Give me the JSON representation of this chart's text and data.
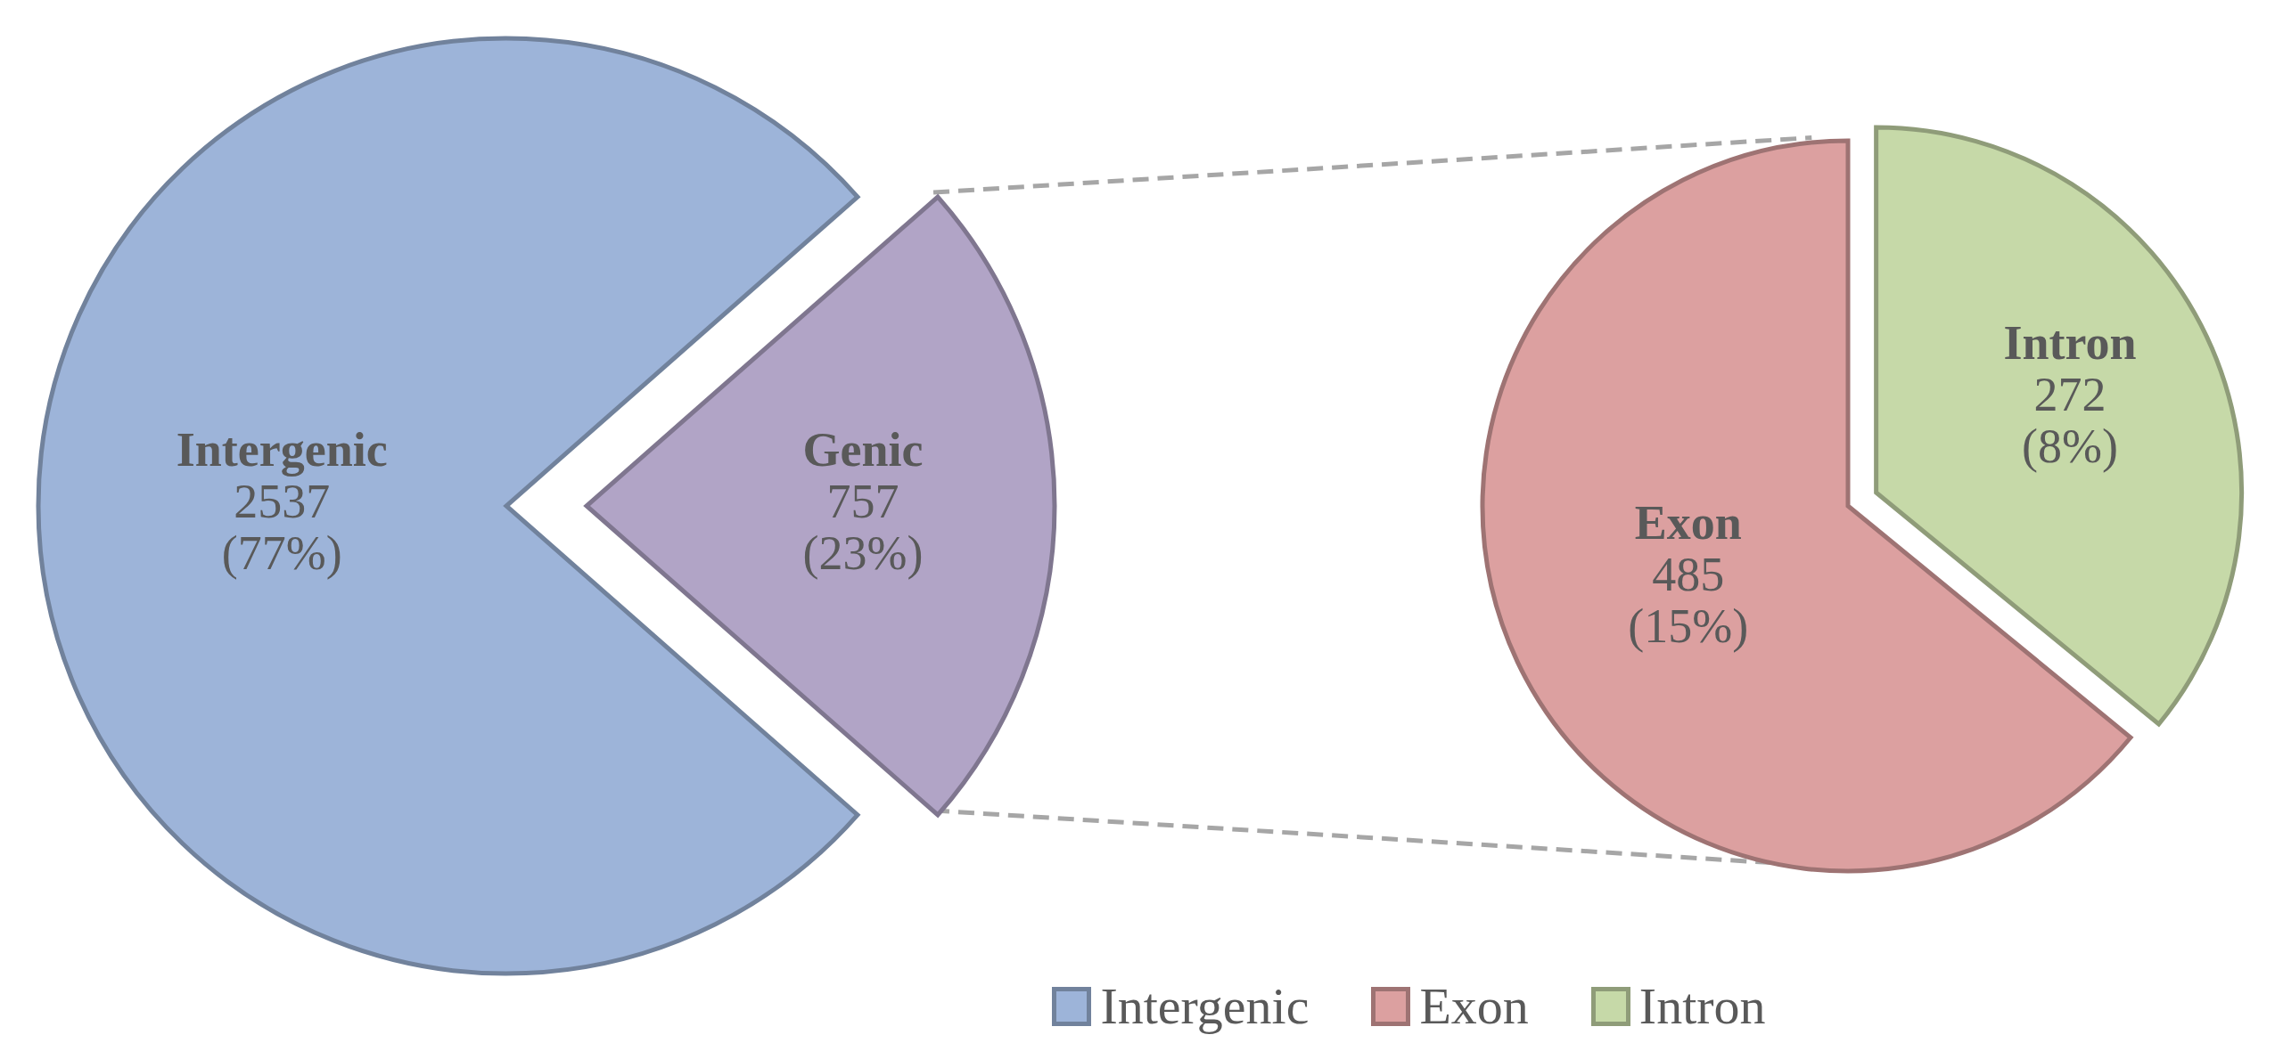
{
  "chart_data": [
    {
      "type": "pie",
      "categories": [
        "Intergenic",
        "Genic"
      ],
      "values": [
        2537,
        757
      ],
      "value_labels": [
        "2537 (77%)",
        "757 (23%)"
      ],
      "colors": [
        "#9db4d9",
        "#b1a4c6"
      ],
      "legend": "bottom"
    },
    {
      "type": "pie",
      "categories": [
        "Exon",
        "Intron"
      ],
      "values": [
        485,
        272
      ],
      "value_labels": [
        "485 (15%)",
        "272 (8%)"
      ],
      "colors": [
        "#dca0a0",
        "#c6d9a8"
      ],
      "legend": "bottom"
    }
  ]
}
